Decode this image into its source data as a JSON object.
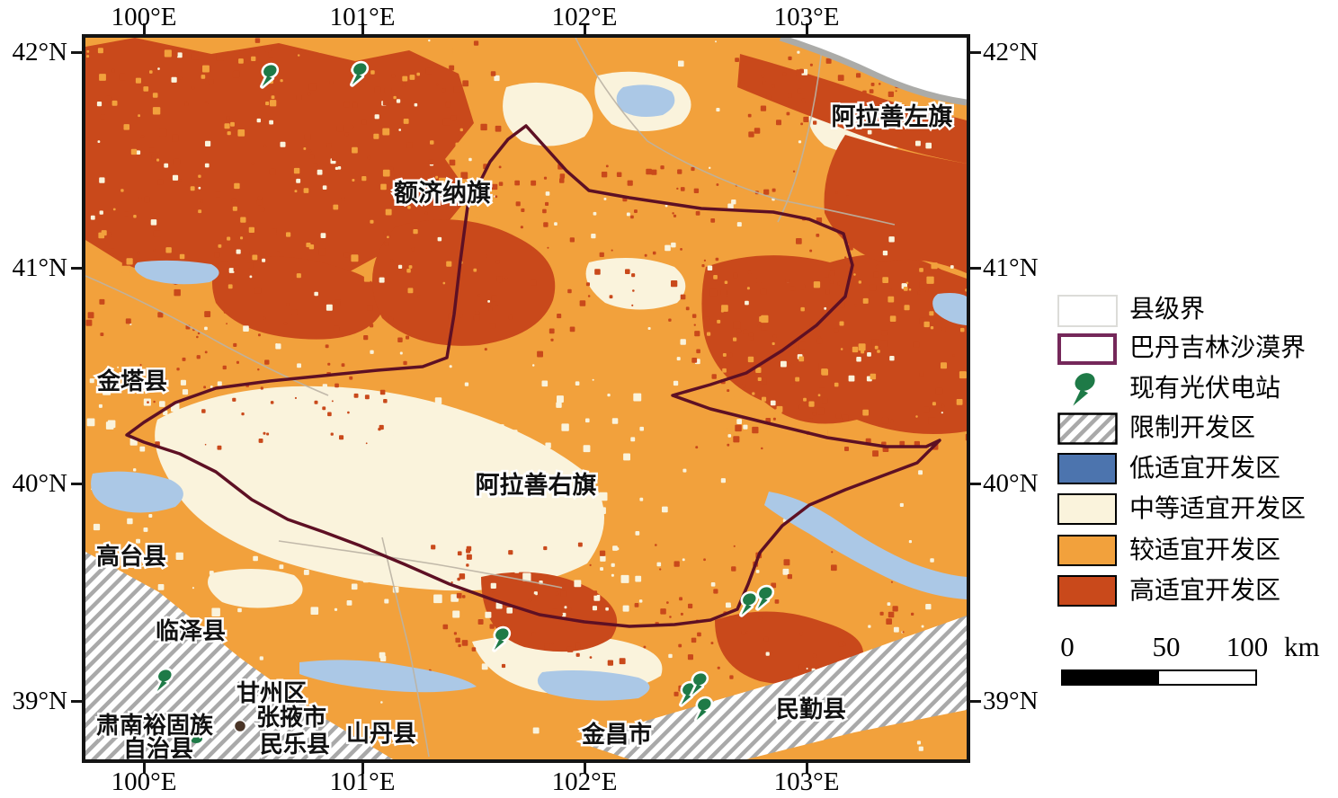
{
  "axes": {
    "top": [
      "100°E",
      "101°E",
      "102°E",
      "103°E"
    ],
    "bottom": [
      "100°E",
      "101°E",
      "102°E",
      "103°E"
    ],
    "left": [
      "42°N",
      "41°N",
      "40°N",
      "39°N"
    ],
    "right": [
      "42°N",
      "41°N",
      "40°N",
      "39°N"
    ]
  },
  "map": {
    "labels": [
      {
        "text": "额济纳旗"
      },
      {
        "text": "阿拉善左旗"
      },
      {
        "text": "金塔县"
      },
      {
        "text": "阿拉善右旗"
      },
      {
        "text": "高台县"
      },
      {
        "text": "临泽县"
      },
      {
        "text": "甘州区"
      },
      {
        "text": "张掖市"
      },
      {
        "text": "肃南裕固族"
      },
      {
        "text": "自治县"
      },
      {
        "text": "民乐县"
      },
      {
        "text": "山丹县"
      },
      {
        "text": "金昌市"
      },
      {
        "text": "民勤县"
      }
    ],
    "boundary_name": "巴丹吉林沙漠界"
  },
  "legend": {
    "items": [
      {
        "label": "县级界",
        "type": "county-boundary"
      },
      {
        "label": "巴丹吉林沙漠界",
        "type": "desert-boundary"
      },
      {
        "label": "现有光伏电站",
        "type": "pv-station"
      },
      {
        "label": "限制开发区",
        "type": "restricted-zone"
      },
      {
        "label": "低适宜开发区",
        "type": "low-suitability"
      },
      {
        "label": "中等适宜开发区",
        "type": "medium-suitability"
      },
      {
        "label": "较适宜开发区",
        "type": "relatively-suitable"
      },
      {
        "label": "高适宜开发区",
        "type": "high-suitability"
      }
    ]
  },
  "scalebar": {
    "tick0": "0",
    "tick50": "50",
    "tick100": "100",
    "unit": "km"
  },
  "colors": {
    "relatively_suitable_orange": "#F2A13C",
    "high_suitability_red": "#C9491B",
    "medium_suitability_cream": "#FAF3DC",
    "low_suitability_blue_legend": "#4C74AE",
    "low_suitability_blue_map": "#ABC8E6",
    "desert_boundary_line": "#5E1024",
    "desert_boundary_legend": "#75285A",
    "pv_pin_green": "#1E7A47",
    "restricted_hatch_gray": "#A9A9A9"
  }
}
